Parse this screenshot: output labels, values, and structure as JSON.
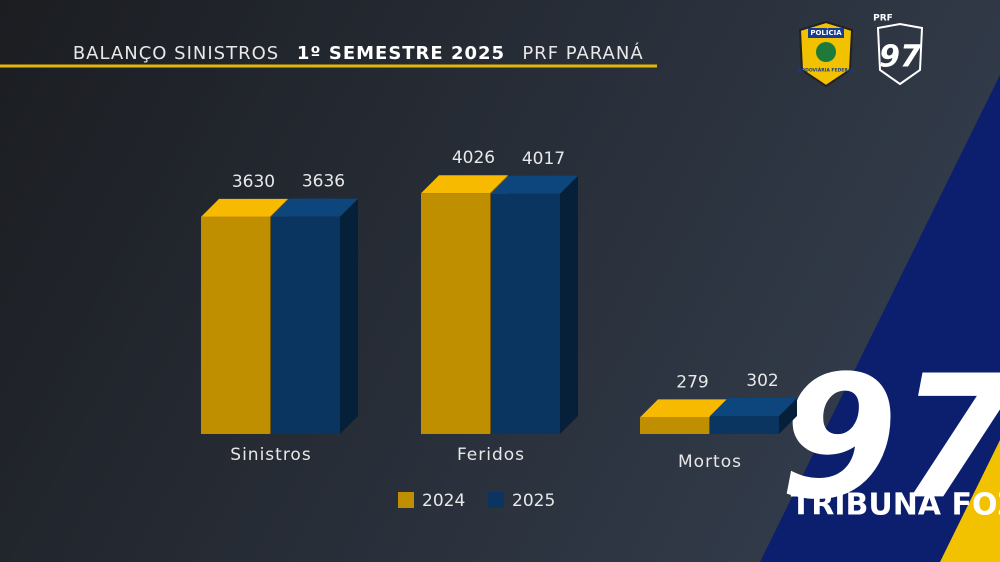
{
  "chart_data": {
    "type": "bar3d",
    "title": {
      "left": "BALANÇO SINISTROS",
      "center": "1º SEMESTRE 2025",
      "right": "PRF PARANÁ"
    },
    "categories": [
      "Sinistros",
      "Feridos",
      "Mortos"
    ],
    "series": [
      {
        "name": "2024",
        "color": "#bf8f00",
        "values": [
          3630,
          4026,
          279
        ]
      },
      {
        "name": "2025",
        "color": "#0a3560",
        "values": [
          3636,
          4017,
          302
        ]
      }
    ],
    "badge": {
      "top": "POLÍCIA",
      "bottom": "RODOVIÁRIA FEDERAL"
    },
    "prf": "PRF",
    "brand": "TRIBUNA FOZ"
  }
}
